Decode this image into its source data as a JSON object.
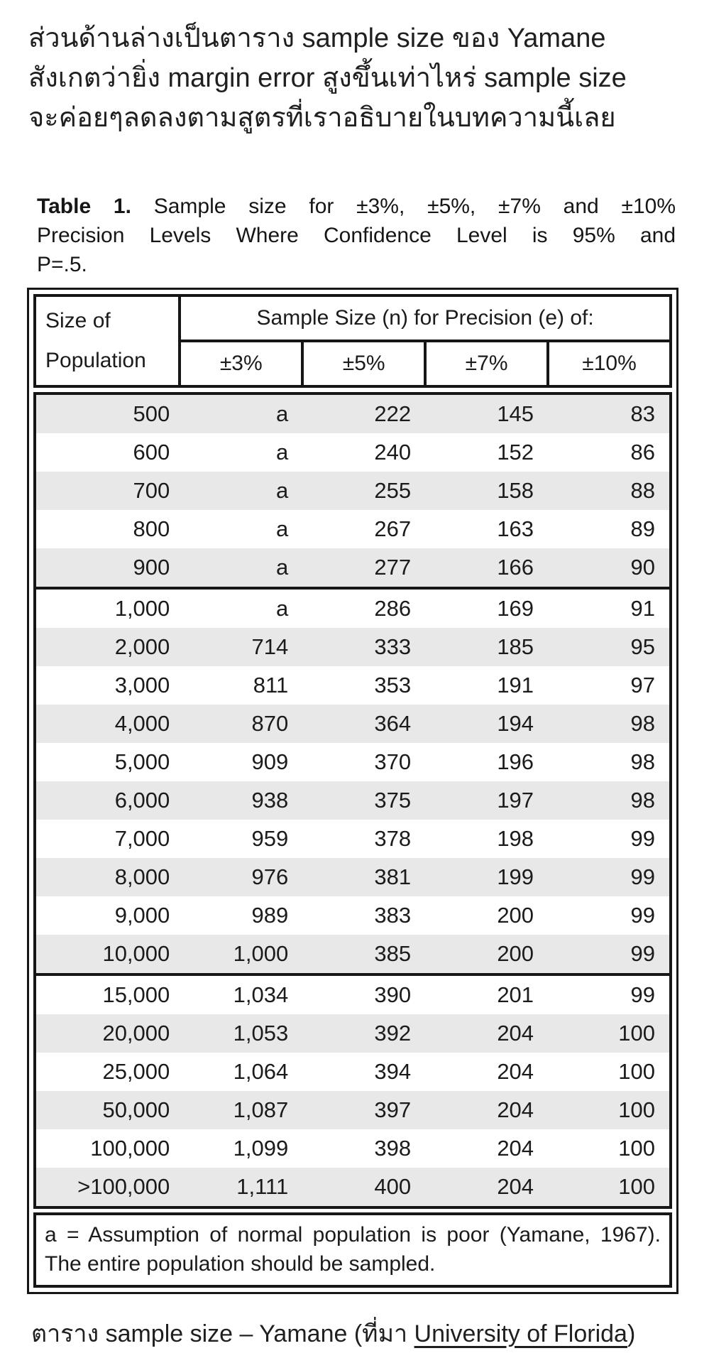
{
  "intro": {
    "lines": [
      "ส่วนด้านล่างเป็นตาราง sample size ของ Yamane",
      "สังเกตว่ายิ่ง margin error สูงขึ้นเท่าไหร่ sample size",
      "จะค่อยๆลดลงตามสูตรที่เราอธิบายในบทความนี้เลย"
    ]
  },
  "table_title": {
    "label": "Table 1.",
    "line1_rest": "Sample size for ±3%, ±5%, ±7% and ±10%",
    "line2": "Precision Levels Where Confidence Level is 95% and",
    "line3": "P=.5."
  },
  "table": {
    "header": {
      "col0_line1": "Size of",
      "col0_line2": "Population",
      "span_label": "Sample Size (n) for Precision (e) of:",
      "precisions": [
        "±3%",
        "±5%",
        "±7%",
        "±10%"
      ]
    },
    "rows": [
      [
        "500",
        "a",
        "222",
        "145",
        "83"
      ],
      [
        "600",
        "a",
        "240",
        "152",
        "86"
      ],
      [
        "700",
        "a",
        "255",
        "158",
        "88"
      ],
      [
        "800",
        "a",
        "267",
        "163",
        "89"
      ],
      [
        "900",
        "a",
        "277",
        "166",
        "90"
      ],
      [
        "1,000",
        "a",
        "286",
        "169",
        "91"
      ],
      [
        "2,000",
        "714",
        "333",
        "185",
        "95"
      ],
      [
        "3,000",
        "811",
        "353",
        "191",
        "97"
      ],
      [
        "4,000",
        "870",
        "364",
        "194",
        "98"
      ],
      [
        "5,000",
        "909",
        "370",
        "196",
        "98"
      ],
      [
        "6,000",
        "938",
        "375",
        "197",
        "98"
      ],
      [
        "7,000",
        "959",
        "378",
        "198",
        "99"
      ],
      [
        "8,000",
        "976",
        "381",
        "199",
        "99"
      ],
      [
        "9,000",
        "989",
        "383",
        "200",
        "99"
      ],
      [
        "10,000",
        "1,000",
        "385",
        "200",
        "99"
      ],
      [
        "15,000",
        "1,034",
        "390",
        "201",
        "99"
      ],
      [
        "20,000",
        "1,053",
        "392",
        "204",
        "100"
      ],
      [
        "25,000",
        "1,064",
        "394",
        "204",
        "100"
      ],
      [
        "50,000",
        "1,087",
        "397",
        "204",
        "100"
      ],
      [
        "100,000",
        "1,099",
        "398",
        "204",
        "100"
      ],
      [
        ">100,000",
        "1,111",
        "400",
        "204",
        "100"
      ]
    ],
    "group_starts": [
      5,
      15
    ],
    "footnote": "a = Assumption of normal population is poor (Yamane, 1967).  The entire population should be sampled."
  },
  "caption": {
    "prefix": "ตาราง sample size – Yamane (ที่มา ",
    "link": "University of Florida",
    "suffix": ")"
  },
  "colors": {
    "stripe": "#e8e8e8",
    "border": "#161616",
    "text": "#1b1b1b"
  }
}
